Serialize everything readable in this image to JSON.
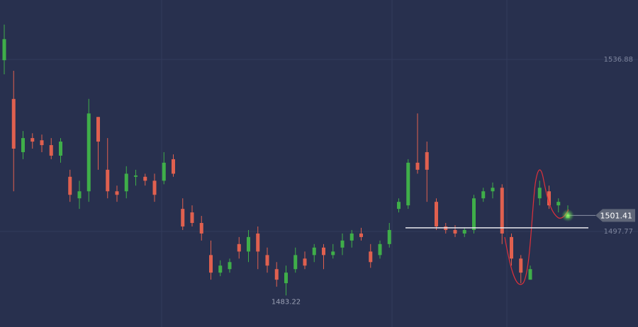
{
  "chart_data": {
    "type": "candlestick",
    "up_color": "#3fae49",
    "down_color": "#e0604f",
    "ylim": [
      1476.04,
      1550.4
    ],
    "yticks": [
      1536.88,
      1497.77
    ],
    "grid": true,
    "horizontal_line": 1498.6,
    "open": [
      1536.7,
      1527.9,
      1515.8,
      1519.0,
      1518.5,
      1517.4,
      1515.0,
      1510.2,
      1505.3,
      1506.9,
      1523.8,
      1511.8,
      1506.9,
      1506.9,
      1510.2,
      1510.2,
      1509.3,
      1509.3,
      1514.2,
      1502.9,
      1502.1,
      1499.7,
      1492.4,
      1488.4,
      1489.2,
      1494.9,
      1493.2,
      1497.3,
      1492.4,
      1489.2,
      1486.0,
      1489.2,
      1491.6,
      1492.4,
      1494.1,
      1492.4,
      1494.1,
      1495.7,
      1497.3,
      1493.2,
      1492.4,
      1494.9,
      1502.9,
      1503.7,
      1513.4,
      1515.8,
      1504.5,
      1498.9,
      1498.1,
      1497.3,
      1498.1,
      1505.3,
      1506.9,
      1507.7,
      1496.5,
      1491.6,
      1486.8,
      1505.3,
      1506.9,
      1503.7,
      1500.8
    ],
    "high": [
      1544.8,
      1534.3,
      1520.6,
      1520.1,
      1519.8,
      1519.0,
      1519.0,
      1511.8,
      1509.3,
      1527.9,
      1523.8,
      1519.0,
      1508.2,
      1512.6,
      1511.8,
      1510.9,
      1510.9,
      1515.8,
      1515.3,
      1505.3,
      1503.7,
      1501.3,
      1495.7,
      1491.2,
      1491.6,
      1496.5,
      1498.1,
      1498.9,
      1494.1,
      1490.8,
      1490.0,
      1494.1,
      1493.2,
      1494.9,
      1494.9,
      1494.9,
      1497.3,
      1498.1,
      1498.6,
      1494.9,
      1495.7,
      1499.7,
      1505.3,
      1514.2,
      1524.6,
      1518.2,
      1505.3,
      1499.7,
      1499.2,
      1498.6,
      1506.1,
      1507.7,
      1508.9,
      1508.5,
      1497.3,
      1492.4,
      1490.0,
      1509.3,
      1508.2,
      1505.3,
      1503.7
    ],
    "low": [
      1533.5,
      1506.9,
      1514.2,
      1516.6,
      1515.8,
      1514.2,
      1513.4,
      1504.5,
      1502.9,
      1504.5,
      1511.8,
      1505.3,
      1504.5,
      1505.3,
      1508.2,
      1508.2,
      1504.5,
      1508.5,
      1510.2,
      1498.1,
      1498.9,
      1495.7,
      1486.8,
      1487.6,
      1488.4,
      1491.6,
      1490.8,
      1489.2,
      1488.4,
      1485.2,
      1483.22,
      1488.4,
      1489.2,
      1490.8,
      1489.2,
      1491.6,
      1492.4,
      1494.1,
      1495.7,
      1489.5,
      1491.6,
      1494.1,
      1502.1,
      1502.9,
      1510.9,
      1504.5,
      1498.1,
      1497.3,
      1496.5,
      1496.5,
      1497.3,
      1504.5,
      1505.3,
      1494.9,
      1490.0,
      1486.0,
      1486.8,
      1503.7,
      1502.9,
      1502.1,
      1501.3
    ],
    "close": [
      1541.5,
      1516.6,
      1519.0,
      1518.2,
      1517.4,
      1515.0,
      1518.2,
      1506.1,
      1506.9,
      1524.6,
      1518.2,
      1506.9,
      1506.1,
      1510.9,
      1510.5,
      1509.3,
      1506.1,
      1513.4,
      1510.9,
      1498.9,
      1499.7,
      1497.3,
      1488.4,
      1490.0,
      1490.8,
      1493.2,
      1496.5,
      1493.2,
      1490.0,
      1486.8,
      1488.4,
      1492.4,
      1490.0,
      1494.1,
      1492.4,
      1493.2,
      1495.7,
      1497.3,
      1496.5,
      1490.8,
      1494.9,
      1498.1,
      1504.5,
      1513.4,
      1511.8,
      1511.8,
      1498.9,
      1498.1,
      1497.3,
      1498.1,
      1505.3,
      1506.9,
      1507.7,
      1497.3,
      1491.6,
      1488.4,
      1489.2,
      1507.7,
      1503.7,
      1504.5,
      1501.41
    ]
  }
}
